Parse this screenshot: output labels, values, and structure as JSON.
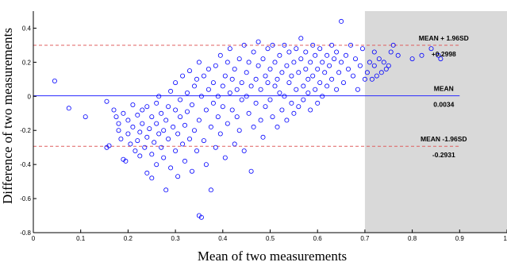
{
  "chart_data": {
    "type": "scatter",
    "title": "",
    "xlabel": "Mean of two measurements",
    "ylabel": "Difference of two measurements",
    "xlim": [
      0,
      1
    ],
    "ylim": [
      -0.8,
      0.5
    ],
    "x_ticks": [
      0,
      0.1,
      0.2,
      0.3,
      0.4,
      0.5,
      0.6,
      0.7,
      0.8,
      0.9,
      1
    ],
    "x_tick_labels": [
      "0",
      "0.1",
      "0.2",
      "0.3",
      "0.4",
      "0.5",
      "0.6",
      "0.7",
      "0.8",
      "0.9",
      "1"
    ],
    "y_ticks": [
      -0.8,
      -0.6,
      -0.4,
      -0.2,
      0,
      0.2,
      0.4
    ],
    "y_tick_labels": [
      "-0.8",
      "-0.6",
      "-0.4",
      "-0.2",
      "0",
      "0.2",
      "0.4"
    ],
    "grid": false,
    "shaded_region": {
      "x_from": 0.7,
      "x_to": 1.0,
      "color": "#d9d9d9"
    },
    "marker": {
      "shape": "circle-open",
      "color": "#0000ff"
    },
    "reference_lines": [
      {
        "name": "MEAN + 1.96SD",
        "value_label": "+0.2998",
        "y": 0.2998,
        "style": "dashed",
        "color": "#e06060"
      },
      {
        "name": "MEAN",
        "value_label": "0.0034",
        "y": 0.0034,
        "style": "solid",
        "color": "#2a2aff"
      },
      {
        "name": "MEAN -1.96SD",
        "value_label": "-0.2931",
        "y": -0.2931,
        "style": "dashed",
        "color": "#e06060"
      }
    ],
    "points": [
      [
        0.045,
        0.09
      ],
      [
        0.075,
        -0.07
      ],
      [
        0.11,
        -0.12
      ],
      [
        0.155,
        -0.03
      ],
      [
        0.155,
        -0.3
      ],
      [
        0.16,
        -0.29
      ],
      [
        0.17,
        -0.08
      ],
      [
        0.175,
        -0.12
      ],
      [
        0.18,
        -0.16
      ],
      [
        0.18,
        -0.2
      ],
      [
        0.185,
        -0.25
      ],
      [
        0.19,
        -0.37
      ],
      [
        0.19,
        -0.1
      ],
      [
        0.195,
        -0.38
      ],
      [
        0.2,
        -0.14
      ],
      [
        0.2,
        -0.22
      ],
      [
        0.205,
        -0.28
      ],
      [
        0.21,
        -0.18
      ],
      [
        0.21,
        -0.05
      ],
      [
        0.215,
        -0.32
      ],
      [
        0.22,
        -0.26
      ],
      [
        0.22,
        -0.11
      ],
      [
        0.225,
        -0.21
      ],
      [
        0.225,
        -0.35
      ],
      [
        0.23,
        -0.08
      ],
      [
        0.23,
        -0.16
      ],
      [
        0.235,
        -0.3
      ],
      [
        0.24,
        -0.24
      ],
      [
        0.24,
        -0.06
      ],
      [
        0.24,
        -0.45
      ],
      [
        0.245,
        -0.19
      ],
      [
        0.25,
        -0.12
      ],
      [
        0.25,
        -0.34
      ],
      [
        0.25,
        -0.48
      ],
      [
        0.255,
        -0.27
      ],
      [
        0.26,
        -0.04
      ],
      [
        0.26,
        -0.16
      ],
      [
        0.26,
        -0.4
      ],
      [
        0.265,
        -0.22
      ],
      [
        0.265,
        0.0
      ],
      [
        0.27,
        -0.3
      ],
      [
        0.27,
        -0.1
      ],
      [
        0.275,
        -0.36
      ],
      [
        0.275,
        -0.2
      ],
      [
        0.28,
        -0.55
      ],
      [
        0.28,
        -0.14
      ],
      [
        0.285,
        -0.06
      ],
      [
        0.285,
        -0.25
      ],
      [
        0.29,
        -0.42
      ],
      [
        0.29,
        0.03
      ],
      [
        0.295,
        -0.18
      ],
      [
        0.3,
        -0.32
      ],
      [
        0.3,
        -0.08
      ],
      [
        0.3,
        0.08
      ],
      [
        0.305,
        -0.22
      ],
      [
        0.305,
        -0.47
      ],
      [
        0.31,
        -0.12
      ],
      [
        0.31,
        -0.02
      ],
      [
        0.315,
        -0.28
      ],
      [
        0.315,
        0.12
      ],
      [
        0.32,
        -0.38
      ],
      [
        0.32,
        -0.17
      ],
      [
        0.325,
        0.02
      ],
      [
        0.325,
        -0.09
      ],
      [
        0.33,
        -0.25
      ],
      [
        0.33,
        0.15
      ],
      [
        0.335,
        -0.44
      ],
      [
        0.335,
        -0.05
      ],
      [
        0.34,
        0.06
      ],
      [
        0.34,
        -0.2
      ],
      [
        0.345,
        -0.32
      ],
      [
        0.345,
        0.1
      ],
      [
        0.35,
        -0.14
      ],
      [
        0.35,
        0.2
      ],
      [
        0.35,
        -0.7
      ],
      [
        0.355,
        -0.71
      ],
      [
        0.355,
        0.0
      ],
      [
        0.36,
        -0.26
      ],
      [
        0.36,
        0.12
      ],
      [
        0.365,
        -0.08
      ],
      [
        0.365,
        -0.4
      ],
      [
        0.37,
        0.04
      ],
      [
        0.37,
        0.16
      ],
      [
        0.375,
        -0.18
      ],
      [
        0.375,
        -0.55
      ],
      [
        0.38,
        0.08
      ],
      [
        0.38,
        -0.04
      ],
      [
        0.385,
        0.18
      ],
      [
        0.385,
        -0.3
      ],
      [
        0.39,
        0.0
      ],
      [
        0.39,
        -0.12
      ],
      [
        0.395,
        0.24
      ],
      [
        0.395,
        -0.22
      ],
      [
        0.4,
        0.06
      ],
      [
        0.4,
        -0.06
      ],
      [
        0.405,
        0.12
      ],
      [
        0.405,
        -0.36
      ],
      [
        0.41,
        0.2
      ],
      [
        0.41,
        -0.16
      ],
      [
        0.415,
        0.02
      ],
      [
        0.415,
        0.28
      ],
      [
        0.42,
        -0.08
      ],
      [
        0.42,
        0.1
      ],
      [
        0.425,
        -0.28
      ],
      [
        0.425,
        0.16
      ],
      [
        0.43,
        0.04
      ],
      [
        0.43,
        -0.12
      ],
      [
        0.435,
        0.22
      ],
      [
        0.435,
        -0.2
      ],
      [
        0.44,
        0.08
      ],
      [
        0.44,
        -0.02
      ],
      [
        0.445,
        0.3
      ],
      [
        0.445,
        -0.32
      ],
      [
        0.45,
        0.14
      ],
      [
        0.45,
        0.0
      ],
      [
        0.455,
        -0.1
      ],
      [
        0.455,
        0.2
      ],
      [
        0.46,
        0.06
      ],
      [
        0.46,
        -0.44
      ],
      [
        0.465,
        0.26
      ],
      [
        0.465,
        -0.18
      ],
      [
        0.47,
        0.1
      ],
      [
        0.47,
        -0.04
      ],
      [
        0.475,
        0.18
      ],
      [
        0.475,
        0.32
      ],
      [
        0.48,
        -0.14
      ],
      [
        0.48,
        0.04
      ],
      [
        0.485,
        0.22
      ],
      [
        0.485,
        -0.24
      ],
      [
        0.49,
        0.12
      ],
      [
        0.49,
        -0.06
      ],
      [
        0.495,
        0.28
      ],
      [
        0.495,
        0.08
      ],
      [
        0.5,
        -0.02
      ],
      [
        0.5,
        0.16
      ],
      [
        0.505,
        0.3
      ],
      [
        0.505,
        -0.12
      ],
      [
        0.51,
        0.06
      ],
      [
        0.51,
        0.2
      ],
      [
        0.515,
        -0.18
      ],
      [
        0.515,
        0.1
      ],
      [
        0.52,
        0.24
      ],
      [
        0.52,
        0.02
      ],
      [
        0.525,
        -0.08
      ],
      [
        0.525,
        0.14
      ],
      [
        0.53,
        0.3
      ],
      [
        0.53,
        0.0
      ],
      [
        0.535,
        0.18
      ],
      [
        0.535,
        -0.14
      ],
      [
        0.54,
        0.08
      ],
      [
        0.54,
        0.26
      ],
      [
        0.545,
        -0.04
      ],
      [
        0.545,
        0.12
      ],
      [
        0.55,
        0.2
      ],
      [
        0.55,
        -0.1
      ],
      [
        0.555,
        0.04
      ],
      [
        0.555,
        0.28
      ],
      [
        0.56,
        0.14
      ],
      [
        0.56,
        -0.06
      ],
      [
        0.565,
        0.22
      ],
      [
        0.565,
        0.34
      ],
      [
        0.57,
        0.06
      ],
      [
        0.57,
        -0.02
      ],
      [
        0.575,
        0.16
      ],
      [
        0.575,
        0.26
      ],
      [
        0.58,
        0.1
      ],
      [
        0.58,
        0.02
      ],
      [
        0.585,
        0.2
      ],
      [
        0.585,
        -0.08
      ],
      [
        0.59,
        0.3
      ],
      [
        0.59,
        0.12
      ],
      [
        0.595,
        0.04
      ],
      [
        0.595,
        0.24
      ],
      [
        0.6,
        0.16
      ],
      [
        0.6,
        -0.04
      ],
      [
        0.605,
        0.28
      ],
      [
        0.605,
        0.08
      ],
      [
        0.61,
        0.2
      ],
      [
        0.61,
        0.0
      ],
      [
        0.615,
        0.14
      ],
      [
        0.62,
        0.24
      ],
      [
        0.62,
        0.06
      ],
      [
        0.625,
        0.18
      ],
      [
        0.63,
        0.3
      ],
      [
        0.63,
        0.1
      ],
      [
        0.635,
        0.22
      ],
      [
        0.64,
        0.04
      ],
      [
        0.64,
        0.26
      ],
      [
        0.645,
        0.14
      ],
      [
        0.65,
        0.44
      ],
      [
        0.65,
        0.2
      ],
      [
        0.655,
        0.08
      ],
      [
        0.66,
        0.24
      ],
      [
        0.665,
        0.16
      ],
      [
        0.67,
        0.3
      ],
      [
        0.675,
        0.12
      ],
      [
        0.68,
        0.22
      ],
      [
        0.685,
        0.04
      ],
      [
        0.69,
        0.18
      ],
      [
        0.695,
        0.28
      ],
      [
        0.7,
        0.1
      ],
      [
        0.705,
        0.14
      ],
      [
        0.71,
        0.2
      ],
      [
        0.715,
        0.1
      ],
      [
        0.72,
        0.18
      ],
      [
        0.72,
        0.26
      ],
      [
        0.725,
        0.12
      ],
      [
        0.73,
        0.22
      ],
      [
        0.735,
        0.14
      ],
      [
        0.74,
        0.2
      ],
      [
        0.745,
        0.16
      ],
      [
        0.75,
        0.18
      ],
      [
        0.755,
        0.26
      ],
      [
        0.76,
        0.3
      ],
      [
        0.77,
        0.24
      ],
      [
        0.8,
        0.22
      ],
      [
        0.82,
        0.24
      ],
      [
        0.84,
        0.28
      ],
      [
        0.855,
        0.24
      ],
      [
        0.86,
        0.22
      ]
    ]
  }
}
